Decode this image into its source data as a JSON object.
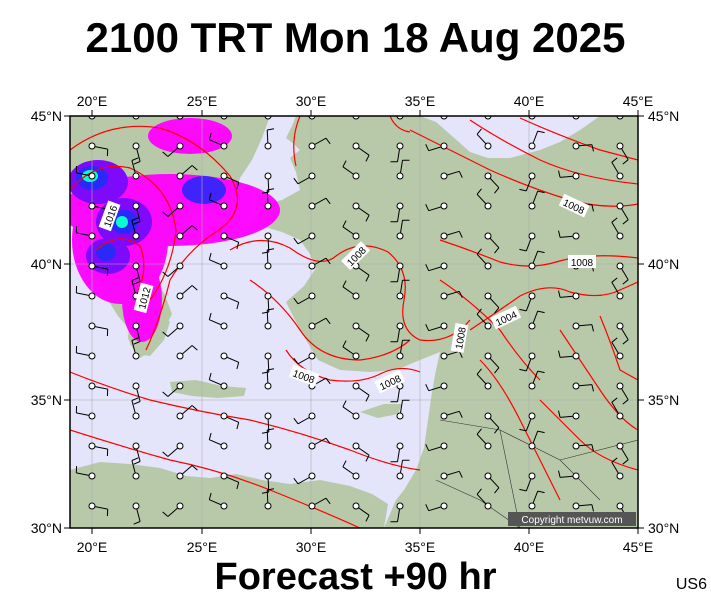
{
  "title": "2100 TRT Mon 18 Aug 2025",
  "footer": "Forecast +90 hr",
  "model_code": "US6",
  "copyright": "Copyright metvuw.com",
  "axes": {
    "top_lon_labels": [
      "20°E",
      "25°E",
      "30°E",
      "35°E",
      "40°E",
      "45°E"
    ],
    "bottom_lon_labels": [
      "20°E",
      "25°E",
      "30°E",
      "35°E",
      "40°E",
      "45°E"
    ],
    "left_lat_labels": [
      "45°N",
      "40°N",
      "35°N",
      "30°N"
    ],
    "right_lat_labels": [
      "45°N",
      "40°N",
      "35°N",
      "30°N"
    ]
  },
  "isobar_labels": [
    "1016",
    "1012",
    "1008",
    "1008",
    "1008",
    "1008",
    "1004",
    "1008",
    "1008"
  ],
  "colors": {
    "sea": "#e4e4fb",
    "land": "#b7c9a8",
    "isobar": "#ff0000",
    "rain_low": "#ff00ff",
    "rain_mid": "#7a00ff",
    "rain_high": "#2222ff",
    "rain_peak": "#00ffd0"
  }
}
